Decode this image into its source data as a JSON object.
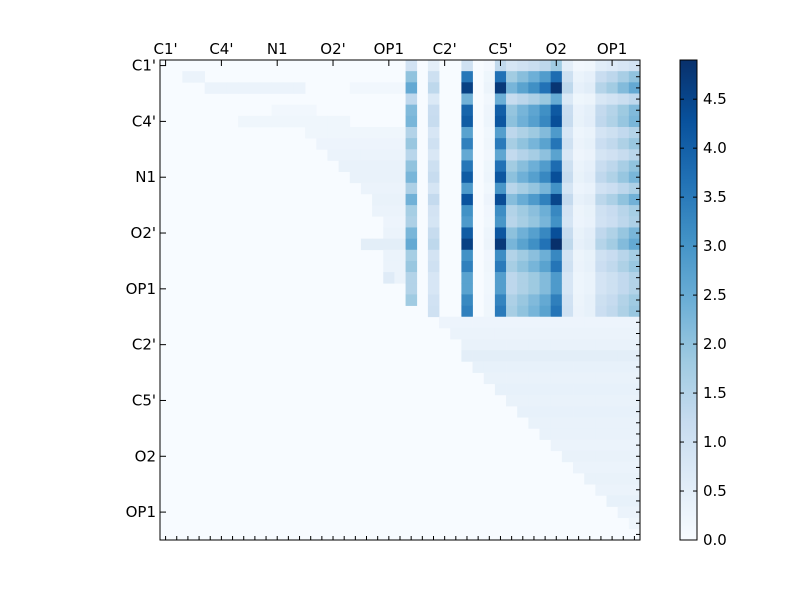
{
  "chart_data": {
    "type": "heatmap",
    "title": "",
    "xlabel": "",
    "ylabel": "",
    "n": 43,
    "x_tick_labels": [
      "C1'",
      "C4'",
      "N1",
      "O2'",
      "OP1",
      "C2'",
      "C5'",
      "O2",
      "OP1"
    ],
    "y_tick_labels": [
      "C1'",
      "C4'",
      "N1",
      "O2'",
      "OP1",
      "C2'",
      "C5'",
      "O2",
      "OP1"
    ],
    "tick_indices": [
      0,
      5,
      10,
      15,
      20,
      25,
      30,
      35,
      40
    ],
    "vmin": 0,
    "vmax": 4.9,
    "colorbar_ticks": [
      0.0,
      0.5,
      1.0,
      1.5,
      2.0,
      2.5,
      3.0,
      3.5,
      4.0,
      4.5
    ],
    "colorbar_tick_labels": [
      "0.0",
      "0.5",
      "1.0",
      "1.5",
      "2.0",
      "2.5",
      "3.0",
      "3.5",
      "4.0",
      "4.5"
    ],
    "colormap": [
      "#f7fbff",
      "#deebf7",
      "#c6dbef",
      "#9ecae1",
      "#6baed6",
      "#4292c6",
      "#2171b5",
      "#08519c",
      "#08306b"
    ],
    "upper_block_column_profile": {
      "22": 1.9,
      "24": 1.0,
      "27": 3.4,
      "29": 0.2,
      "30": 3.5,
      "31": 1.7,
      "32": 2.0,
      "33": 2.3,
      "34": 2.7,
      "35": 3.6,
      "36": 1.0,
      "37": 0.3,
      "38": 0.4,
      "39": 1.1,
      "40": 1.3,
      "41": 1.6,
      "42": 1.9
    },
    "upper_block_row_profile": [
      0.5,
      1.05,
      1.35,
      0.7,
      1.15,
      1.2,
      0.8,
      1.0,
      0.75,
      1.05,
      1.2,
      0.85,
      1.25,
      0.9,
      0.85,
      1.2,
      1.35,
      0.9,
      1.0,
      0.8,
      0.8,
      0.95,
      1.0
    ],
    "anomalies": [
      {
        "row": 2,
        "col": 35,
        "value": 4.8
      },
      {
        "row": 16,
        "col": 35,
        "value": 4.9
      },
      {
        "row": 0,
        "col": 27,
        "value": 1.0
      },
      {
        "row": 0,
        "col": 30,
        "value": 1.3
      }
    ],
    "left_block_values": [
      {
        "row": 1,
        "cols": [
          2,
          3
        ],
        "value": 0.3
      },
      {
        "row": 2,
        "cols": [
          4,
          12
        ],
        "value": 0.3
      },
      {
        "row": 2,
        "cols": [
          17,
          21
        ],
        "value": 0.15
      },
      {
        "row": 4,
        "cols": [
          10,
          13
        ],
        "value": 0.15
      },
      {
        "row": 5,
        "cols": [
          7,
          16
        ],
        "value": 0.2
      },
      {
        "row": 6,
        "cols": [
          13,
          21
        ],
        "value": 0.2
      },
      {
        "row": 7,
        "cols": [
          14,
          21
        ],
        "value": 0.25
      },
      {
        "row": 8,
        "cols": [
          15,
          21
        ],
        "value": 0.3
      },
      {
        "row": 9,
        "cols": [
          16,
          21
        ],
        "value": 0.35
      },
      {
        "row": 10,
        "cols": [
          17,
          21
        ],
        "value": 0.35
      },
      {
        "row": 11,
        "cols": [
          18,
          21
        ],
        "value": 0.3
      },
      {
        "row": 12,
        "cols": [
          19,
          21
        ],
        "value": 0.35
      },
      {
        "row": 13,
        "cols": [
          19,
          21
        ],
        "value": 0.3
      },
      {
        "row": 14,
        "cols": [
          20,
          21
        ],
        "value": 0.25
      },
      {
        "row": 15,
        "cols": [
          20,
          21
        ],
        "value": 0.3
      },
      {
        "row": 16,
        "cols": [
          18,
          21
        ],
        "value": 0.5
      },
      {
        "row": 17,
        "cols": [
          20,
          21
        ],
        "value": 0.3
      },
      {
        "row": 18,
        "cols": [
          20,
          21
        ],
        "value": 0.3
      },
      {
        "row": 19,
        "cols": [
          21,
          21
        ],
        "value": 0.3
      },
      {
        "row": 19,
        "cols": [
          20,
          20
        ],
        "value": 0.6
      }
    ],
    "lower_block_values": [
      {
        "row": 23,
        "cols": [
          25,
          42
        ],
        "value": 0.25
      },
      {
        "row": 24,
        "cols": [
          26,
          42
        ],
        "value": 0.3
      },
      {
        "row": 25,
        "cols": [
          27,
          42
        ],
        "value": 0.35
      },
      {
        "row": 26,
        "cols": [
          27,
          42
        ],
        "value": 0.5
      },
      {
        "row": 27,
        "cols": [
          28,
          42
        ],
        "value": 0.4
      },
      {
        "row": 28,
        "cols": [
          29,
          42
        ],
        "value": 0.35
      },
      {
        "row": 29,
        "cols": [
          30,
          42
        ],
        "value": 0.4
      },
      {
        "row": 30,
        "cols": [
          31,
          42
        ],
        "value": 0.35
      },
      {
        "row": 31,
        "cols": [
          32,
          42
        ],
        "value": 0.4
      },
      {
        "row": 32,
        "cols": [
          33,
          42
        ],
        "value": 0.35
      },
      {
        "row": 33,
        "cols": [
          34,
          42
        ],
        "value": 0.35
      },
      {
        "row": 34,
        "cols": [
          35,
          42
        ],
        "value": 0.3
      },
      {
        "row": 35,
        "cols": [
          36,
          42
        ],
        "value": 0.35
      },
      {
        "row": 36,
        "cols": [
          37,
          42
        ],
        "value": 0.3
      },
      {
        "row": 37,
        "cols": [
          37,
          42
        ],
        "value": 0.35
      },
      {
        "row": 38,
        "cols": [
          38,
          42
        ],
        "value": 0.3
      },
      {
        "row": 39,
        "cols": [
          39,
          42
        ],
        "value": 0.4
      },
      {
        "row": 40,
        "cols": [
          39,
          42
        ],
        "value": 0.3
      },
      {
        "row": 41,
        "cols": [
          40,
          42
        ],
        "value": 0.2
      }
    ]
  }
}
